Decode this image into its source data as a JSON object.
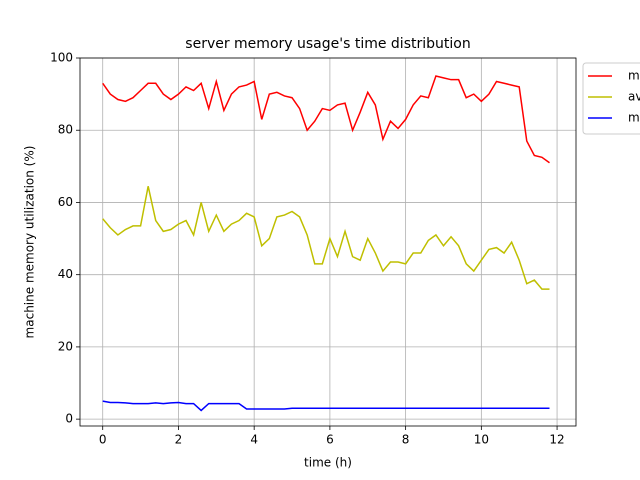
{
  "chart_data": {
    "type": "line",
    "title": "server memory usage's time distribution",
    "x_label": "time (h)",
    "y_label": "machine memory utilization (%)",
    "x": [
      0,
      0.2,
      0.4,
      0.6,
      0.8,
      1.0,
      1.2,
      1.4,
      1.6,
      1.8,
      2.0,
      2.2,
      2.4,
      2.6,
      2.8,
      3.0,
      3.2,
      3.4,
      3.6,
      3.8,
      4.0,
      4.2,
      4.4,
      4.6,
      4.8,
      5.0,
      5.2,
      5.4,
      5.6,
      5.8,
      6.0,
      6.2,
      6.4,
      6.6,
      6.8,
      7.0,
      7.2,
      7.4,
      7.6,
      7.8,
      8.0,
      8.2,
      8.4,
      8.6,
      8.8,
      9.0,
      9.2,
      9.4,
      9.6,
      9.8,
      10.0,
      10.2,
      10.4,
      10.6,
      10.8,
      11.0,
      11.2,
      11.4,
      11.6,
      11.8
    ],
    "series": [
      {
        "name": "m",
        "color": "#ff0000",
        "values": [
          93,
          90,
          88.5,
          88,
          89,
          91,
          93,
          93,
          90,
          88.5,
          90,
          92,
          91,
          93,
          86,
          93.5,
          85.5,
          90,
          92,
          92.5,
          93.5,
          83,
          90,
          90.5,
          89.5,
          89,
          86,
          80,
          82.5,
          86,
          85.5,
          87,
          87.5,
          80,
          85,
          90.5,
          87,
          77.5,
          82.5,
          80.5,
          83,
          87,
          89.5,
          89,
          95,
          94.5,
          94,
          94,
          89,
          90,
          88,
          90,
          93.5,
          93,
          92.5,
          92,
          77,
          73,
          72.5,
          71
        ]
      },
      {
        "name": "av",
        "color": "#bfbf00",
        "values": [
          55.5,
          53,
          51,
          52.5,
          53.5,
          53.5,
          64.5,
          55,
          52,
          52.5,
          54,
          55,
          51,
          60,
          52,
          56.5,
          52,
          54,
          55,
          57,
          56,
          48,
          50,
          56,
          56.5,
          57.5,
          56,
          51,
          43,
          43,
          50,
          45,
          52,
          45,
          44,
          50,
          46,
          41,
          43.5,
          43.5,
          43,
          46,
          46,
          49.5,
          51,
          48,
          50.5,
          48,
          43,
          41,
          44,
          47,
          47.5,
          46,
          49,
          44,
          37.5,
          38.5,
          36,
          36
        ]
      },
      {
        "name": "m",
        "color": "#0000ff",
        "values": [
          5,
          4.6,
          4.6,
          4.5,
          4.3,
          4.3,
          4.3,
          4.5,
          4.3,
          4.5,
          4.6,
          4.3,
          4.3,
          2.4,
          4.3,
          4.3,
          4.3,
          4.3,
          4.3,
          2.8,
          2.8,
          2.8,
          2.8,
          2.8,
          2.8,
          3,
          3,
          3,
          3,
          3,
          3,
          3,
          3,
          3,
          3,
          3,
          3,
          3,
          3,
          3,
          3,
          3,
          3,
          3,
          3,
          3,
          3,
          3,
          3,
          3,
          3,
          3,
          3,
          3,
          3,
          3,
          3,
          3,
          3,
          3
        ]
      }
    ],
    "xlim": [
      -0.6,
      12.5
    ],
    "xticks": [
      0,
      2,
      4,
      6,
      8,
      10,
      12
    ],
    "ylim": [
      -1.9,
      100
    ],
    "yticks": [
      0,
      20,
      40,
      60,
      80,
      100
    ],
    "grid": true,
    "legend": "outside upper right"
  }
}
